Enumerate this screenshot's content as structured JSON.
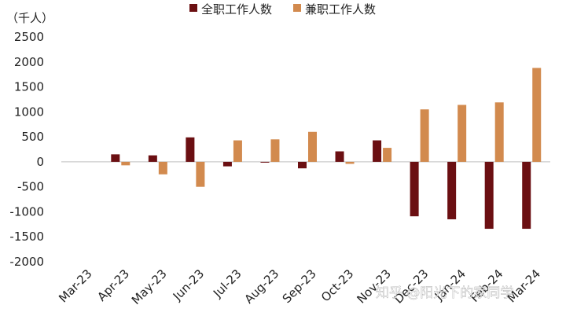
{
  "chart_data": {
    "type": "bar",
    "unit_label": "（千人）",
    "categories": [
      "Mar-23",
      "Apr-23",
      "May-23",
      "Jun-23",
      "Jul-23",
      "Aug-23",
      "Sep-23",
      "Oct-23",
      "Nov-23",
      "Dec-23",
      "Jan-24",
      "Feb-24",
      "Mar-24"
    ],
    "series": [
      {
        "name": "全职工作人数",
        "color": "#6b0f12",
        "values": [
          0,
          150,
          130,
          490,
          -90,
          -15,
          -130,
          210,
          430,
          -1090,
          -1150,
          -1340,
          -1340
        ]
      },
      {
        "name": "兼职工作人数",
        "color": "#d28a4e",
        "values": [
          0,
          -70,
          -250,
          -500,
          430,
          450,
          600,
          -40,
          280,
          1050,
          1140,
          1190,
          1880
        ]
      }
    ],
    "yticks": [
      -2000,
      -1500,
      -1000,
      -500,
      0,
      500,
      1000,
      1500,
      2000,
      2500
    ],
    "ylim": [
      -2000,
      2500
    ],
    "legend_position": "top",
    "grid": false
  },
  "watermark": "知乎 @阳光下的家同学"
}
